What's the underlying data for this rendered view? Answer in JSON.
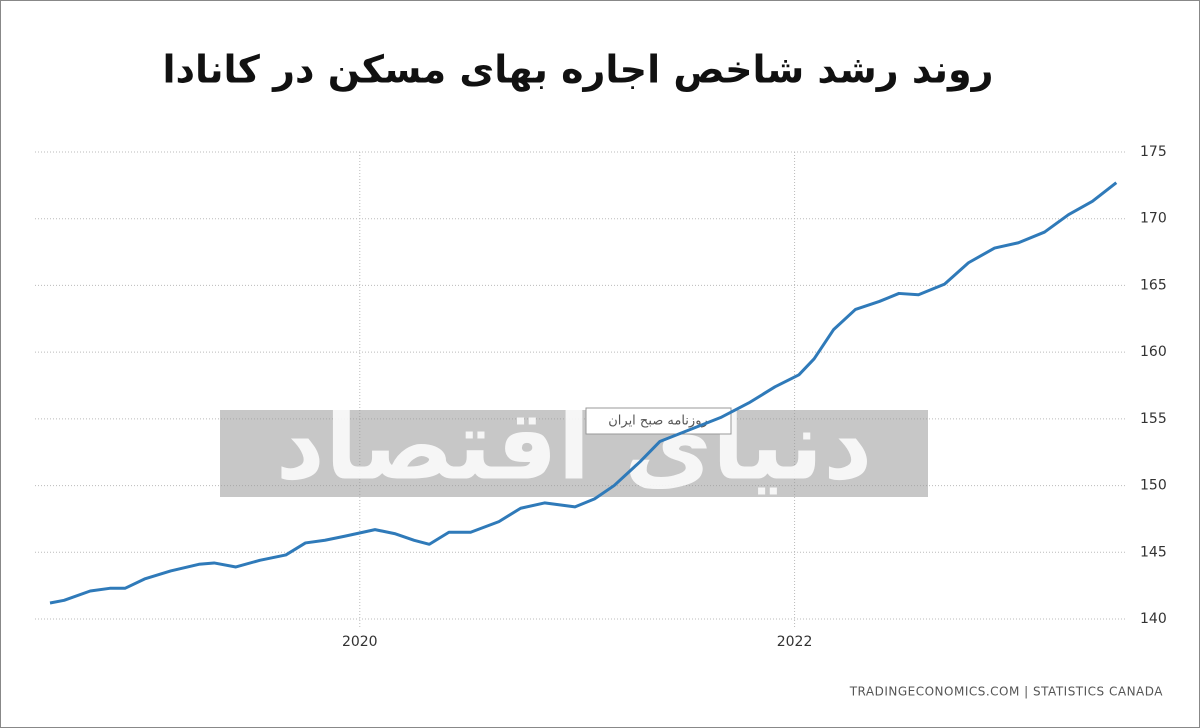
{
  "chart_data": {
    "type": "line",
    "title": "روند رشد شاخص اجاره بهای مسکن در کانادا",
    "source": "TRADINGECONOMICS.COM  |  STATISTICS CANADA",
    "watermark": "دنیای اقتصاد",
    "watermark_tag": "روزنامه صبح ایران",
    "x": [
      2018.575,
      2018.64,
      2018.76,
      2018.85,
      2018.92,
      2019.01,
      2019.13,
      2019.26,
      2019.33,
      2019.43,
      2019.54,
      2019.66,
      2019.75,
      2019.84,
      2019.93,
      2020.07,
      2020.16,
      2020.25,
      2020.32,
      2020.41,
      2020.51,
      2020.64,
      2020.74,
      2020.85,
      2020.99,
      2021.08,
      2021.17,
      2021.29,
      2021.38,
      2021.52,
      2021.66,
      2021.79,
      2021.91,
      2022.02,
      2022.09,
      2022.18,
      2022.28,
      2022.39,
      2022.48,
      2022.57,
      2022.69,
      2022.8,
      2022.92,
      2023.03,
      2023.15,
      2023.26,
      2023.37,
      2023.48
    ],
    "series": [
      {
        "color": "#2f7ab9",
        "values": [
          141.2,
          141.4,
          142.1,
          142.3,
          142.3,
          143.0,
          143.6,
          144.1,
          144.2,
          143.9,
          144.4,
          144.8,
          145.7,
          145.9,
          146.2,
          146.7,
          146.4,
          145.9,
          145.6,
          146.5,
          146.5,
          147.3,
          148.3,
          148.7,
          148.4,
          149.0,
          150.0,
          151.8,
          153.3,
          154.2,
          155.1,
          156.2,
          157.4,
          158.3,
          159.5,
          161.7,
          163.2,
          163.8,
          164.4,
          164.3,
          165.1,
          166.7,
          167.8,
          168.2,
          169.0,
          170.3,
          171.3,
          172.7
        ]
      }
    ],
    "xlim": [
      2018.506,
      2023.52
    ],
    "xticks": [
      2020,
      2022
    ],
    "ylim": [
      140,
      175
    ],
    "yticks": [
      140,
      145,
      150,
      155,
      160,
      165,
      170,
      175
    ],
    "grid": true
  }
}
